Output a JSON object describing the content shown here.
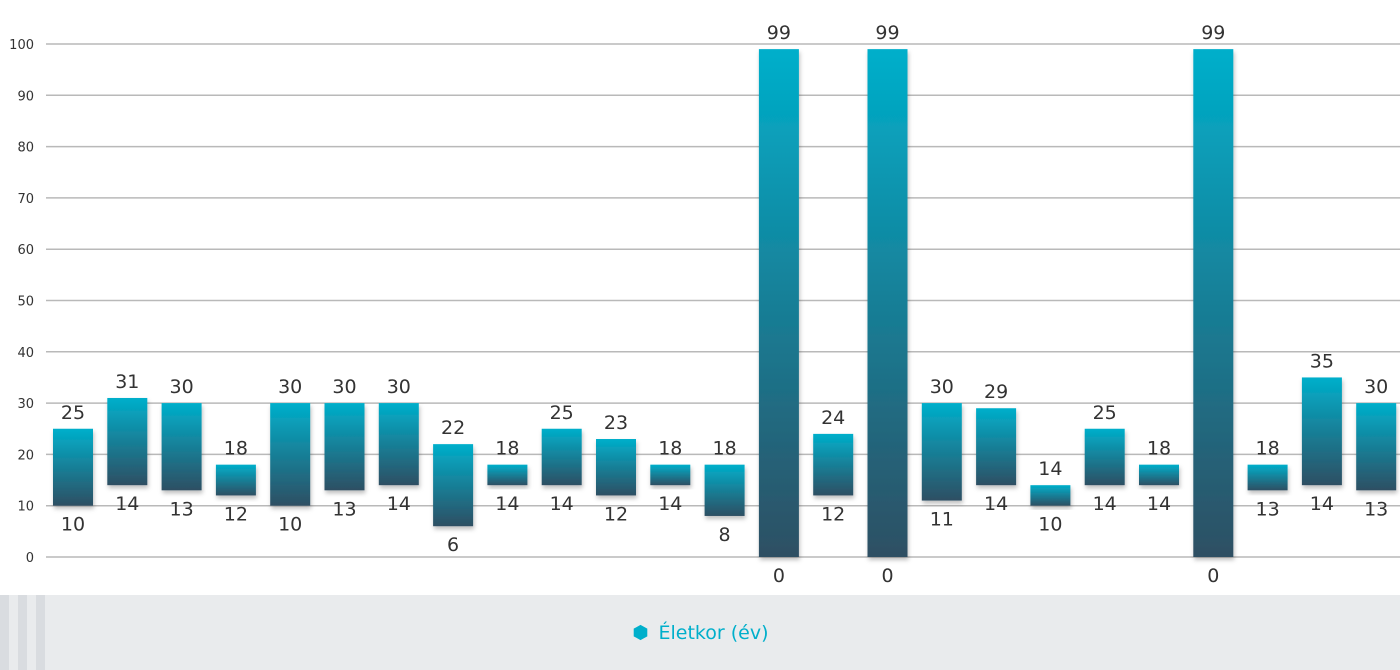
{
  "colors": {
    "bar_top": "#00afcb",
    "bar_bottom": "#2e4f63",
    "legend_text": "#00afcb",
    "legend_marker": "#00afcb"
  },
  "legend": {
    "label": "Életkor (év)",
    "marker_icon": "hexagon-icon",
    "placement": "bottom"
  },
  "chart_data": {
    "type": "bar",
    "subtype": "floating-range",
    "title": "",
    "xlabel": "",
    "ylabel": "",
    "ylim": [
      0,
      100
    ],
    "yticks": [
      0,
      10,
      20,
      30,
      40,
      50,
      60,
      70,
      80,
      90,
      100
    ],
    "grid": true,
    "series": [
      {
        "name": "Életkor (év)",
        "low": [
          10,
          14,
          13,
          12,
          10,
          13,
          14,
          6,
          14,
          14,
          12,
          14,
          8,
          0,
          12,
          0,
          11,
          14,
          10,
          14,
          14,
          0,
          13,
          14,
          13
        ],
        "high": [
          25,
          31,
          30,
          18,
          30,
          30,
          30,
          22,
          18,
          25,
          23,
          18,
          18,
          99,
          24,
          99,
          30,
          29,
          14,
          25,
          18,
          99,
          18,
          35,
          30
        ]
      }
    ]
  }
}
